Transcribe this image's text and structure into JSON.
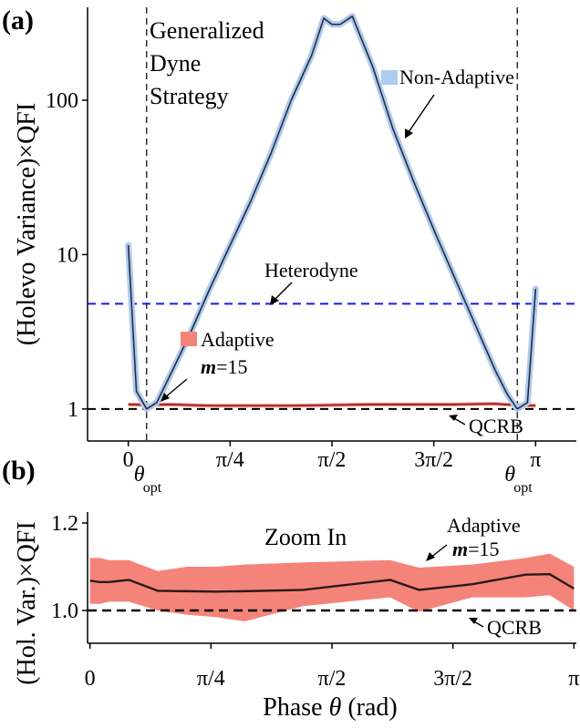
{
  "chart_data": [
    {
      "panel": "(a)",
      "type": "line",
      "yscale": "log",
      "ylabel": "(Holevo Variance)×QFI",
      "ylim": [
        0.62,
        400
      ],
      "xlim": [
        -0.1,
        1.1
      ],
      "x_ticks": [
        {
          "v": 0,
          "label": "0"
        },
        {
          "v": 0.25,
          "label": "π/4"
        },
        {
          "v": 0.5,
          "label": "π/2"
        },
        {
          "v": 0.75,
          "label": "3π/2"
        },
        {
          "v": 1,
          "label": "π"
        }
      ],
      "y_ticks": [
        {
          "v": 1,
          "label": "1"
        },
        {
          "v": 10,
          "label": "10"
        },
        {
          "v": 100,
          "label": "100"
        }
      ],
      "theta_opt": {
        "positions": [
          0.045,
          0.955
        ],
        "label": "θ",
        "subscript": "opt"
      },
      "title_lines": [
        "Generalized",
        "Dyne",
        "Strategy"
      ],
      "series": [
        {
          "name": "Non-Adaptive",
          "color": "#2b2b3a",
          "band_color": "#aecbf0",
          "x": [
            0.0,
            0.02,
            0.045,
            0.07,
            0.1,
            0.15,
            0.2,
            0.25,
            0.3,
            0.35,
            0.4,
            0.45,
            0.48,
            0.5,
            0.52,
            0.55,
            0.6,
            0.65,
            0.7,
            0.75,
            0.8,
            0.85,
            0.9,
            0.93,
            0.955,
            0.98,
            1.0
          ],
          "values": [
            11.5,
            1.3,
            1.0,
            1.1,
            1.6,
            3.0,
            6.0,
            11.5,
            22.0,
            45.0,
            100.0,
            195.0,
            340.0,
            310.0,
            310.0,
            350.0,
            165.0,
            65.0,
            30.0,
            14.5,
            7.2,
            3.6,
            1.8,
            1.25,
            1.0,
            1.1,
            6.0
          ]
        },
        {
          "name": "Adaptive",
          "sublabel_var": "m",
          "sublabel_rest": "=15",
          "color": "#8b1a1a",
          "band_color": "#f4847a",
          "x": [
            0.0,
            0.05,
            0.1,
            0.2,
            0.3,
            0.4,
            0.5,
            0.6,
            0.7,
            0.8,
            0.9,
            0.95,
            1.0
          ],
          "values": [
            1.07,
            1.06,
            1.07,
            1.05,
            1.05,
            1.05,
            1.06,
            1.07,
            1.07,
            1.07,
            1.08,
            1.06,
            1.05
          ],
          "band_lo": [
            1.04,
            1.03,
            1.04,
            1.02,
            1.02,
            1.02,
            1.03,
            1.04,
            1.04,
            1.04,
            1.05,
            1.03,
            1.02
          ],
          "band_hi": [
            1.1,
            1.09,
            1.1,
            1.08,
            1.08,
            1.08,
            1.09,
            1.1,
            1.1,
            1.1,
            1.11,
            1.09,
            1.08
          ]
        }
      ],
      "reference_lines": [
        {
          "name": "Heterodyne",
          "value": 4.8,
          "color": "#1a1aee"
        },
        {
          "name": "QCRB",
          "value": 1.0,
          "color": "#000000"
        }
      ]
    },
    {
      "panel": "(b)",
      "type": "line",
      "ylabel": "(Hol. Var.)×QFI",
      "xlabel_prefix": "Phase ",
      "xlabel_var": "θ",
      "xlabel_suffix": " (rad)",
      "ylim": [
        0.925,
        1.225
      ],
      "xlim": [
        -0.005,
        1.005
      ],
      "x_ticks": [
        {
          "v": 0,
          "label": "0"
        },
        {
          "v": 0.25,
          "label": "π/4"
        },
        {
          "v": 0.5,
          "label": "π/2"
        },
        {
          "v": 0.75,
          "label": "3π/2"
        },
        {
          "v": 1,
          "label": "π"
        }
      ],
      "y_ticks": [
        {
          "v": 1.0,
          "label": "1.0"
        },
        {
          "v": 1.2,
          "label": "1.2"
        }
      ],
      "title": "Zoom In",
      "series": [
        {
          "name": "Adaptive",
          "sublabel_var": "m",
          "sublabel_rest": "=15",
          "color": "#2b1a1a",
          "band_color": "#f4847a",
          "x": [
            0.0,
            0.02,
            0.04,
            0.08,
            0.14,
            0.2,
            0.26,
            0.32,
            0.44,
            0.62,
            0.68,
            0.79,
            0.9,
            0.95,
            1.0
          ],
          "values": [
            1.068,
            1.065,
            1.065,
            1.07,
            1.045,
            1.044,
            1.043,
            1.044,
            1.047,
            1.07,
            1.047,
            1.06,
            1.082,
            1.083,
            1.05
          ],
          "band_lo": [
            1.015,
            1.015,
            1.02,
            1.02,
            1.0,
            0.99,
            0.985,
            0.975,
            1.01,
            1.03,
            0.997,
            1.03,
            1.03,
            1.035,
            1.0
          ],
          "band_hi": [
            1.12,
            1.12,
            1.115,
            1.115,
            1.09,
            1.1,
            1.1,
            1.105,
            1.11,
            1.115,
            1.098,
            1.105,
            1.12,
            1.13,
            1.1
          ]
        }
      ],
      "reference_lines": [
        {
          "name": "QCRB",
          "value": 1.0,
          "color": "#000000"
        }
      ]
    }
  ]
}
